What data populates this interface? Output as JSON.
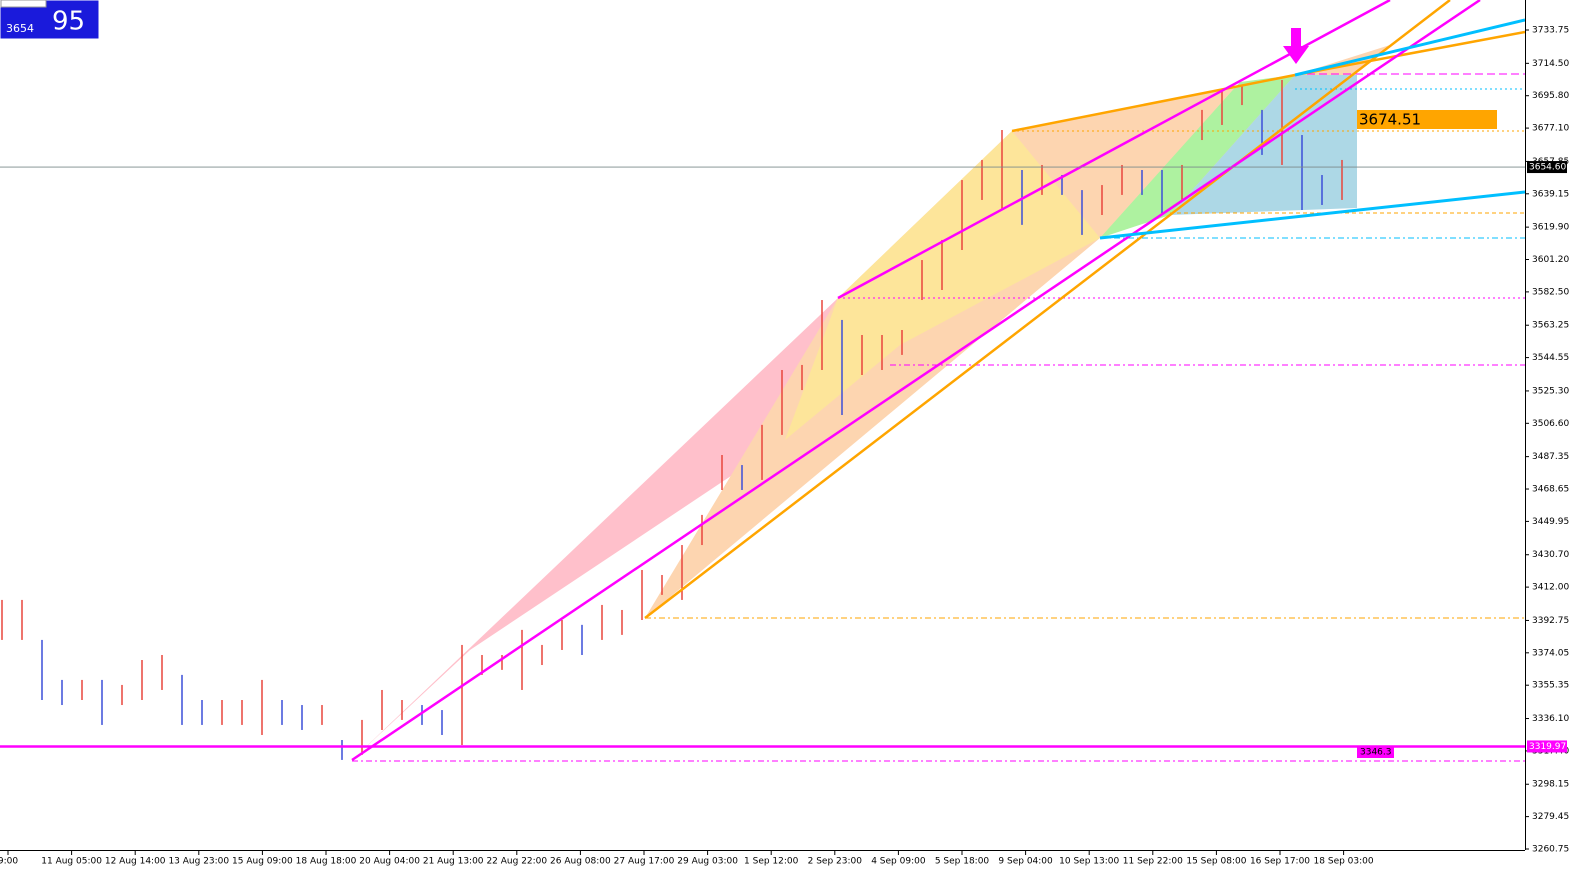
{
  "quote": {
    "small": "3654",
    "big": "95"
  },
  "annotations": [
    "3674.51",
    "3346.3"
  ],
  "chart_data": {
    "type": "ohlc",
    "categories": [
      "9:00",
      "11 Aug 05:00",
      "12 Aug 14:00",
      "13 Aug 23:00",
      "15 Aug 09:00",
      "18 Aug 18:00",
      "20 Aug 04:00",
      "21 Aug 13:00",
      "22 Aug 22:00",
      "26 Aug 08:00",
      "27 Aug 17:00",
      "29 Aug 03:00",
      "1 Sep 12:00",
      "2 Sep 23:00",
      "4 Sep 09:00",
      "5 Sep 18:00",
      "9 Sep 04:00",
      "10 Sep 13:00",
      "11 Sep 22:00",
      "15 Sep 08:00",
      "16 Sep 17:00",
      "18 Sep 03:00"
    ],
    "high": [
      3404.6,
      3404.6,
      3381.5,
      3358.4,
      3358.4,
      3358.4,
      3355.5,
      3369.9,
      3372.8,
      3361.3,
      3346.8,
      3346.8,
      3346.8,
      3358.4,
      3346.8,
      3343.9,
      3343.9,
      3323.7,
      3335.3,
      3352.6,
      3346.8,
      3343.9,
      3341.0,
      3378.6,
      3372.8,
      3372.8,
      3387.3,
      3378.6,
      3393.0,
      3390.2,
      3401.7,
      3398.8,
      3421.9,
      3419.0,
      3436.3,
      3453.7,
      3488.3,
      3482.5,
      3505.7,
      3537.4,
      3540.3,
      3577.8,
      3566.3,
      3557.6,
      3557.6,
      3560.5,
      3600.9,
      3612.5,
      3647.1,
      3658.7,
      3676.0,
      3652.9,
      3655.8,
      3650.0,
      3641.3,
      3644.2,
      3655.8,
      3652.9,
      3652.9,
      3655.8,
      3687.6,
      3699.1,
      3702.0,
      3687.6,
      3704.9,
      3673.1,
      3650.0,
      3658.7
    ],
    "low": [
      3381.5,
      3381.5,
      3346.8,
      3343.9,
      3346.8,
      3332.4,
      3343.9,
      3346.8,
      3352.6,
      3332.4,
      3332.4,
      3332.4,
      3332.4,
      3326.6,
      3332.4,
      3329.5,
      3332.4,
      3312.2,
      3315.1,
      3329.5,
      3335.3,
      3332.4,
      3326.6,
      3320.8,
      3361.3,
      3364.2,
      3352.6,
      3367.0,
      3375.7,
      3372.8,
      3381.5,
      3384.4,
      3393.0,
      3407.5,
      3404.6,
      3436.3,
      3468.1,
      3468.1,
      3473.9,
      3499.9,
      3525.8,
      3537.4,
      3511.4,
      3534.5,
      3537.4,
      3546.1,
      3577.8,
      3583.6,
      3606.7,
      3635.6,
      3629.8,
      3621.2,
      3638.5,
      3638.5,
      3615.4,
      3626.9,
      3638.5,
      3638.5,
      3626.9,
      3635.6,
      3670.2,
      3678.9,
      3690.4,
      3661.6,
      3655.8,
      3629.8,
      3632.7,
      3635.6
    ],
    "up_color": "#e8453c",
    "down_color": "#3b4fd8",
    "ylim": [
      3260.75,
      3733.75
    ],
    "yticks": [
      3733.75,
      {
        "value": 3714.5,
        "label": "3714.50"
      },
      {
        "value": 3695.8,
        "label": "3695.80"
      },
      {
        "value": 3677.1,
        "label": "3677.10"
      },
      3657.85,
      3639.15,
      {
        "value": 3619.9,
        "label": "3619.90"
      },
      {
        "value": 3601.2,
        "label": "3601.20"
      },
      {
        "value": 3582.5,
        "label": "3582.50"
      },
      3563.25,
      3544.55,
      {
        "value": 3525.3,
        "label": "3525.30"
      },
      {
        "value": 3506.6,
        "label": "3506.60"
      },
      3487.35,
      3468.65,
      3449.95,
      {
        "value": 3430.7,
        "label": "3430.70"
      },
      {
        "value": 3412,
        "label": "3412.00"
      },
      3392.75,
      3374.05,
      3355.35,
      {
        "value": 3336.1,
        "label": "3336.10"
      },
      {
        "value": 3317.4,
        "label": "3317.40"
      },
      3298.15,
      3279.45,
      3260.75
    ],
    "price_lines": [
      {
        "value": 3654.6,
        "label": "3654.60",
        "color": "#000000",
        "line_color": "#7a8a8a"
      },
      {
        "value": 3319.97,
        "label": "3319.97",
        "color": "#ff00ff",
        "line_color": "#ff00ff"
      }
    ]
  }
}
